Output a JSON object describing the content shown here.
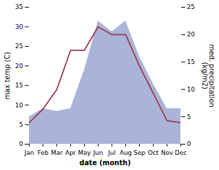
{
  "chart_data": {
    "type": "line",
    "categories": [
      "Jan",
      "Feb",
      "Mar",
      "Apr",
      "May",
      "Jun",
      "Jul",
      "Aug",
      "Sep",
      "Oct",
      "Nov",
      "Dec"
    ],
    "xlabel": "date (month)",
    "ylabel": "max temp (C)",
    "y2label": "med. precipitation\n(kg/m2)",
    "ylim": [
      0,
      35
    ],
    "yticks": [
      0,
      5,
      10,
      15,
      20,
      25,
      30,
      35
    ],
    "y2lim": [
      0,
      25
    ],
    "y2ticks": [
      0,
      5,
      10,
      15,
      20,
      25
    ],
    "grid": false,
    "series": [
      {
        "type": "area",
        "axis": "y2",
        "color": "#aab4d8",
        "values": [
          5.0,
          6.5,
          6.0,
          6.5,
          13.5,
          22.5,
          20.5,
          22.5,
          16.0,
          11.0,
          6.5,
          6.5
        ]
      },
      {
        "type": "line",
        "color": "#9b3a4a",
        "values": [
          5.5,
          9.0,
          14.0,
          24.0,
          24.0,
          30.0,
          28.0,
          28.0,
          20.0,
          13.0,
          6.0,
          5.5
        ]
      }
    ]
  }
}
